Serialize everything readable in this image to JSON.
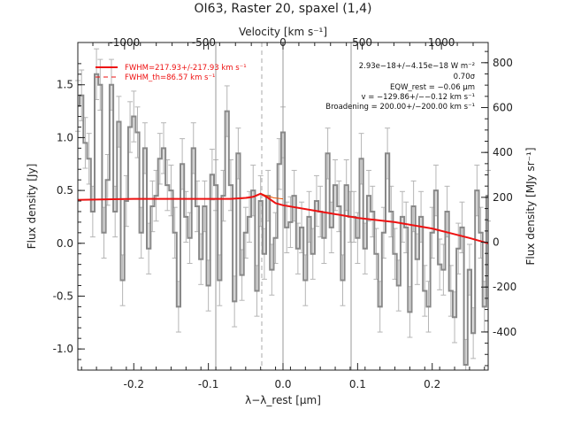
{
  "chart_data": {
    "type": "line",
    "title": "OI63, Raster 20, spaxel (1,4)",
    "xlabel": "λ−λ_rest [μm]",
    "ylabel": "Flux density [Jy]",
    "top_xlabel": "Velocity [km s⁻¹]",
    "right_ylabel": "Flux density [MJy sr⁻¹]",
    "xlim": [
      -0.275,
      0.275
    ],
    "ylim": [
      -1.2,
      1.9
    ],
    "velocity_lim": [
      -1295,
      1295
    ],
    "right_ylim": [
      -570,
      890
    ],
    "x_ticks": [
      "-0.2",
      "-0.1",
      "0.0",
      "0.1",
      "0.2"
    ],
    "x_tick_values": [
      -0.2,
      -0.1,
      0.0,
      0.1,
      0.2
    ],
    "y_ticks": [
      "-1.0",
      "-0.5",
      "0.0",
      "0.5",
      "1.0",
      "1.5"
    ],
    "y_tick_values": [
      -1.0,
      -0.5,
      0.0,
      0.5,
      1.0,
      1.5
    ],
    "top_ticks": [
      "-1000",
      "-500",
      "0",
      "500",
      "1000"
    ],
    "top_tick_values": [
      -1000,
      -500,
      0,
      500,
      1000
    ],
    "right_ticks": [
      "-400",
      "-200",
      "0",
      "200",
      "400",
      "600",
      "800"
    ],
    "right_tick_values": [
      -400,
      -200,
      0,
      200,
      400,
      600,
      800
    ],
    "grid": false,
    "vlines_solid": [
      -0.094,
      0.0,
      0.094
    ],
    "vline_dashed": -0.029,
    "legend": [
      {
        "label": "FWHM=217.93+/-217.93 km s⁻¹",
        "style": "solid"
      },
      {
        "label": "FWHM_th=86.57 km s⁻¹",
        "style": "dashed"
      }
    ],
    "annotations": [
      "2.93e−18+/−4.15e−18 W m⁻²",
      "0.70σ",
      "EQW_rest = −0.06 μm",
      "v = −129.86+/−−0.12 km s⁻¹",
      "Broadening = 200.00+/−200.00 km s⁻¹"
    ],
    "colors": {
      "data": "#888888",
      "error": "#b5b5b5",
      "fit": "#ee1111",
      "component": "#ee5500",
      "axis": "#222222",
      "ref_line": "#999999"
    },
    "series": [
      {
        "name": "spectrum",
        "x": [
          -0.275,
          -0.27,
          -0.265,
          -0.26,
          -0.255,
          -0.25,
          -0.245,
          -0.24,
          -0.235,
          -0.23,
          -0.225,
          -0.22,
          -0.215,
          -0.21,
          -0.205,
          -0.2,
          -0.195,
          -0.19,
          -0.185,
          -0.18,
          -0.175,
          -0.17,
          -0.165,
          -0.16,
          -0.155,
          -0.15,
          -0.145,
          -0.14,
          -0.135,
          -0.13,
          -0.125,
          -0.12,
          -0.115,
          -0.11,
          -0.105,
          -0.1,
          -0.095,
          -0.09,
          -0.085,
          -0.08,
          -0.075,
          -0.07,
          -0.065,
          -0.06,
          -0.055,
          -0.05,
          -0.045,
          -0.04,
          -0.035,
          -0.03,
          -0.025,
          -0.02,
          -0.015,
          -0.01,
          -0.005,
          0.0,
          0.005,
          0.01,
          0.015,
          0.02,
          0.025,
          0.03,
          0.035,
          0.04,
          0.045,
          0.05,
          0.055,
          0.06,
          0.065,
          0.07,
          0.075,
          0.08,
          0.085,
          0.09,
          0.095,
          0.1,
          0.105,
          0.11,
          0.115,
          0.12,
          0.125,
          0.13,
          0.135,
          0.14,
          0.145,
          0.15,
          0.155,
          0.16,
          0.165,
          0.17,
          0.175,
          0.18,
          0.185,
          0.19,
          0.195,
          0.2,
          0.205,
          0.21,
          0.215,
          0.22,
          0.225,
          0.23,
          0.235,
          0.24,
          0.245,
          0.25,
          0.255,
          0.26,
          0.265,
          0.27,
          0.275
        ],
        "y": [
          1.3,
          1.4,
          0.95,
          0.8,
          0.3,
          1.6,
          1.5,
          0.1,
          0.6,
          1.5,
          0.3,
          1.15,
          -0.35,
          0.4,
          1.1,
          1.2,
          1.05,
          0.1,
          0.9,
          -0.05,
          0.35,
          0.45,
          0.8,
          0.9,
          0.55,
          0.5,
          0.1,
          -0.6,
          0.75,
          0.25,
          0.05,
          0.9,
          0.35,
          -0.15,
          0.35,
          -0.4,
          0.65,
          0.55,
          -0.35,
          0.45,
          1.25,
          0.55,
          -0.55,
          0.85,
          -0.3,
          0.1,
          0.25,
          0.5,
          -0.45,
          0.4,
          -0.1,
          0.45,
          -0.25,
          0.05,
          0.75,
          1.05,
          0.15,
          0.2,
          0.45,
          -0.05,
          0.15,
          -0.35,
          0.25,
          -0.1,
          0.4,
          0.3,
          0.05,
          0.85,
          0.15,
          0.55,
          0.35,
          -0.35,
          0.55,
          0.25,
          0.25,
          0.05,
          0.8,
          -0.05,
          0.45,
          0.3,
          -0.1,
          -0.6,
          0.1,
          0.85,
          0.3,
          -0.1,
          -0.4,
          0.25,
          0.15,
          -0.65,
          0.35,
          -0.15,
          0.25,
          -0.45,
          -0.6,
          0.1,
          0.5,
          -0.2,
          -0.25,
          0.3,
          -0.45,
          -0.7,
          -0.05,
          0.15,
          -1.15,
          -0.25,
          -0.85,
          0.5,
          0.1,
          -0.6,
          0.45
        ]
      },
      {
        "name": "fit",
        "x": [
          -0.275,
          -0.2,
          -0.1,
          -0.07,
          -0.05,
          -0.04,
          -0.03,
          -0.02,
          -0.01,
          0.0,
          0.05,
          0.1,
          0.15,
          0.2,
          0.25,
          0.275
        ],
        "y": [
          0.41,
          0.42,
          0.42,
          0.42,
          0.43,
          0.44,
          0.47,
          0.43,
          0.38,
          0.36,
          0.3,
          0.24,
          0.2,
          0.14,
          0.05,
          0.0
        ]
      }
    ]
  }
}
